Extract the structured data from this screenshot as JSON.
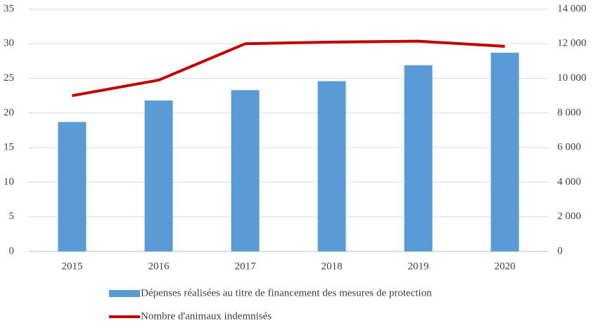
{
  "chart_data": {
    "type": "bar",
    "categories": [
      "2015",
      "2016",
      "2017",
      "2018",
      "2019",
      "2020"
    ],
    "series": [
      {
        "name": "Dépenses réalisées au titre de financement des mesures de protection",
        "type": "bar",
        "color": "#5b9bd5",
        "values": [
          18.7,
          21.8,
          23.3,
          24.6,
          26.9,
          28.7
        ]
      },
      {
        "name": "Nombre d'animaux indemnisés",
        "type": "line",
        "axis": "y2",
        "color": "#c00000",
        "values": [
          9000,
          9900,
          12000,
          12100,
          12150,
          11850
        ]
      }
    ],
    "ylim": [
      0,
      35
    ],
    "yticks": [
      0,
      5,
      10,
      15,
      20,
      25,
      30,
      35
    ],
    "y2lim": [
      0,
      14000
    ],
    "y2ticks": [
      0,
      {
        "value": 2000,
        "label": "2 000"
      },
      {
        "value": 4000,
        "label": "4 000"
      },
      {
        "value": 6000,
        "label": "6 000"
      },
      {
        "value": 8000,
        "label": "8 000"
      },
      {
        "value": 10000,
        "label": "10 000"
      },
      {
        "value": 12000,
        "label": "12 000"
      },
      {
        "value": 14000,
        "label": "14 000"
      }
    ],
    "grid": true,
    "legend": "bottom"
  }
}
